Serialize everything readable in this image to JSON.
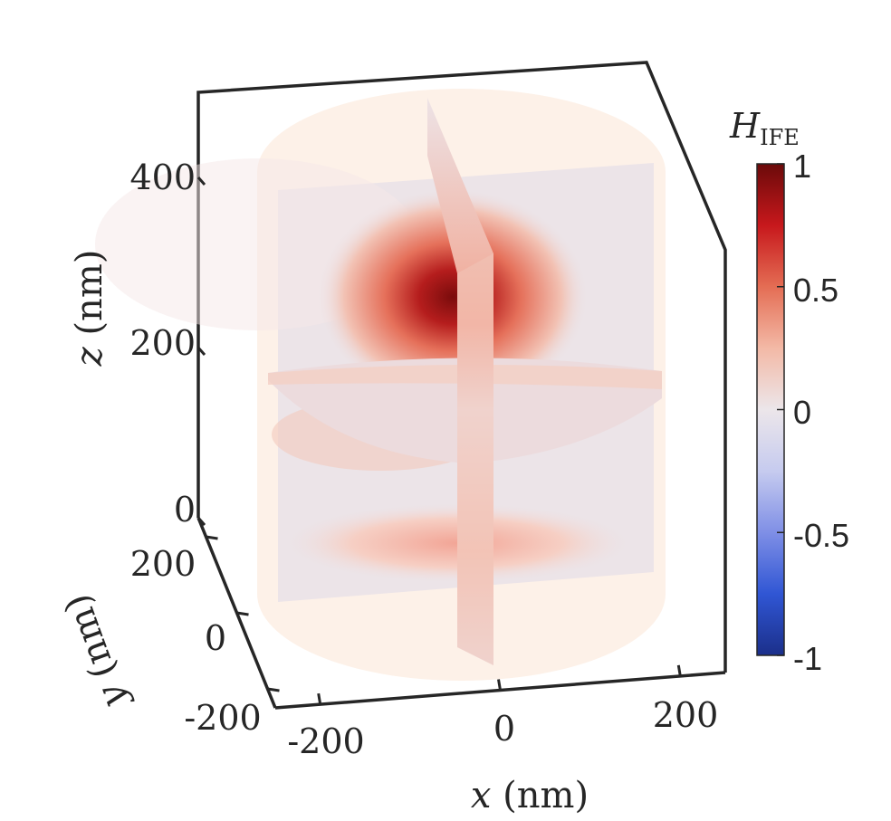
{
  "chart_data": {
    "type": "heatmap",
    "subtype": "3d-slices",
    "title": "",
    "xlabel_var": "x",
    "xlabel_unit": " (nm)",
    "ylabel_var": "y",
    "ylabel_unit": " (nm)",
    "zlabel_var": "z",
    "zlabel_unit": " (nm)",
    "xlim": [
      -250,
      250
    ],
    "ylim": [
      -250,
      250
    ],
    "zlim": [
      0,
      500
    ],
    "x_ticks": [
      "-200",
      "0",
      "200"
    ],
    "y_ticks": [
      "-200",
      "0",
      "200"
    ],
    "z_ticks": [
      "0",
      "200",
      "400"
    ],
    "colorbar": {
      "label_main": "H",
      "label_sub": "IFE",
      "range": [
        -1,
        1
      ],
      "ticks": [
        "1",
        "0.5",
        "0",
        "-0.5",
        "-1"
      ],
      "colormap": [
        "#1b2f8a",
        "#3056d4",
        "#7f8fe6",
        "#c6cbef",
        "#ece6ea",
        "#f3b9a6",
        "#e46d54",
        "#c7181c",
        "#6b0a0a"
      ]
    },
    "structure": "cylinder",
    "cylinder_radius_nm": 250,
    "cylinder_height_nm": 500,
    "cylinder_color": "#fdf1e8",
    "slices": [
      "xz-plane at y=0",
      "yz-plane at x=0",
      "xy-plane at z=200"
    ],
    "peak": {
      "x": 0,
      "y": 0,
      "z": 250,
      "value": 1.0
    }
  }
}
